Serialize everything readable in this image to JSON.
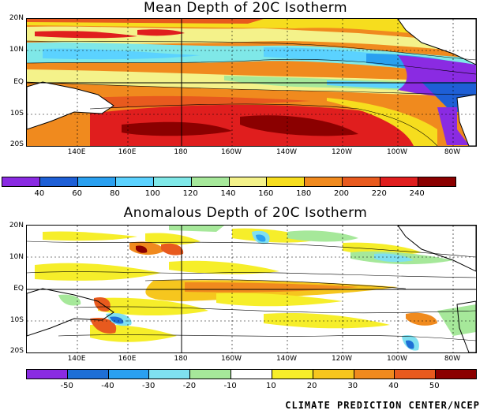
{
  "maps": [
    {
      "title": "Mean Depth of 20C Isotherm",
      "lat_labels": [
        "20N",
        "10N",
        "EQ",
        "10S",
        "20S"
      ],
      "lon_labels": [
        "140E",
        "160E",
        "180",
        "160W",
        "140W",
        "120W",
        "100W",
        "80W"
      ],
      "colorbar": {
        "labels": [
          "40",
          "60",
          "80",
          "100",
          "120",
          "140",
          "160",
          "180",
          "200",
          "220",
          "240"
        ],
        "colors": [
          "#8a2be2",
          "#1e5fd6",
          "#2aa0f0",
          "#5bd2ff",
          "#7fe8e8",
          "#a6e89a",
          "#f4f28a",
          "#f6dd1e",
          "#f08a1e",
          "#e85a1e",
          "#e01e1e",
          "#8b0000"
        ]
      }
    },
    {
      "title": "Anomalous Depth of 20C Isotherm",
      "lat_labels": [
        "20N",
        "10N",
        "EQ",
        "10S",
        "20S"
      ],
      "lon_labels": [
        "140E",
        "160E",
        "180",
        "160W",
        "140W",
        "120W",
        "100W",
        "80W"
      ],
      "colorbar": {
        "labels": [
          "-50",
          "-40",
          "-30",
          "-20",
          "-10",
          "10",
          "20",
          "30",
          "40",
          "50"
        ],
        "colors": [
          "#8a2be2",
          "#1e6fd6",
          "#2aa0f0",
          "#7fe0f0",
          "#a6e89a",
          "#ffffff",
          "#f6ee2a",
          "#f6c61e",
          "#f08a1e",
          "#e85a1e",
          "#8b0000"
        ]
      }
    }
  ],
  "credit": "CLIMATE PREDICTION CENTER/NCEP"
}
